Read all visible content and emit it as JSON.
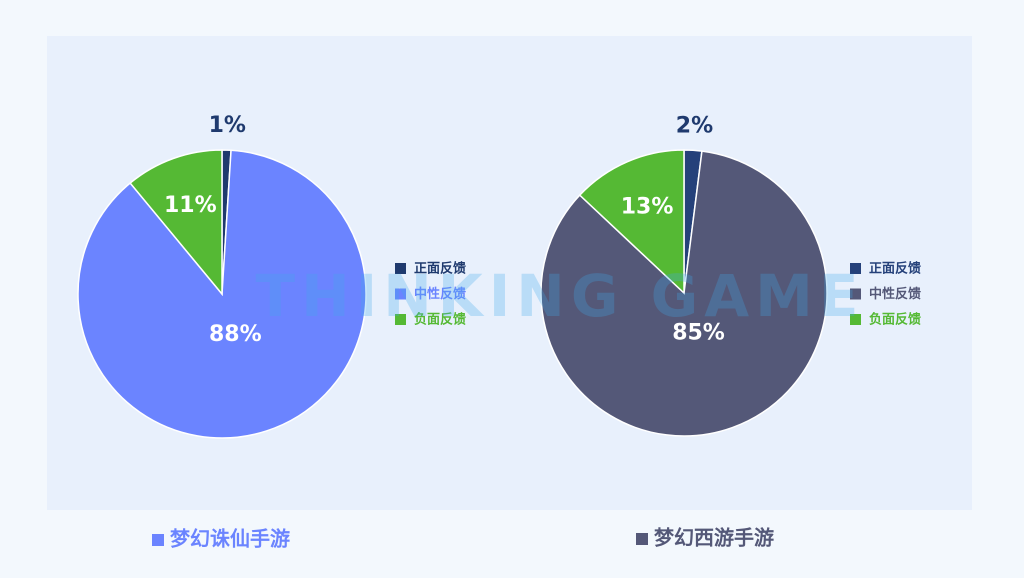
{
  "watermark": "THINKING GAME",
  "chart_data": [
    {
      "type": "pie",
      "title": "梦幻诛仙手游",
      "categories": [
        "正面反馈",
        "中性反馈",
        "负面反馈"
      ],
      "values": [
        1,
        88,
        11
      ],
      "value_labels": [
        "1%",
        "88%",
        "11%"
      ],
      "colors": [
        "#1f3a6e",
        "#6b84ff",
        "#55b934"
      ]
    },
    {
      "type": "pie",
      "title": "梦幻西游手游",
      "categories": [
        "正面反馈",
        "中性反馈",
        "负面反馈"
      ],
      "values": [
        2,
        85,
        13
      ],
      "value_labels": [
        "2%",
        "85%",
        "13%"
      ],
      "colors": [
        "#25417a",
        "#545878",
        "#55b934"
      ]
    }
  ]
}
